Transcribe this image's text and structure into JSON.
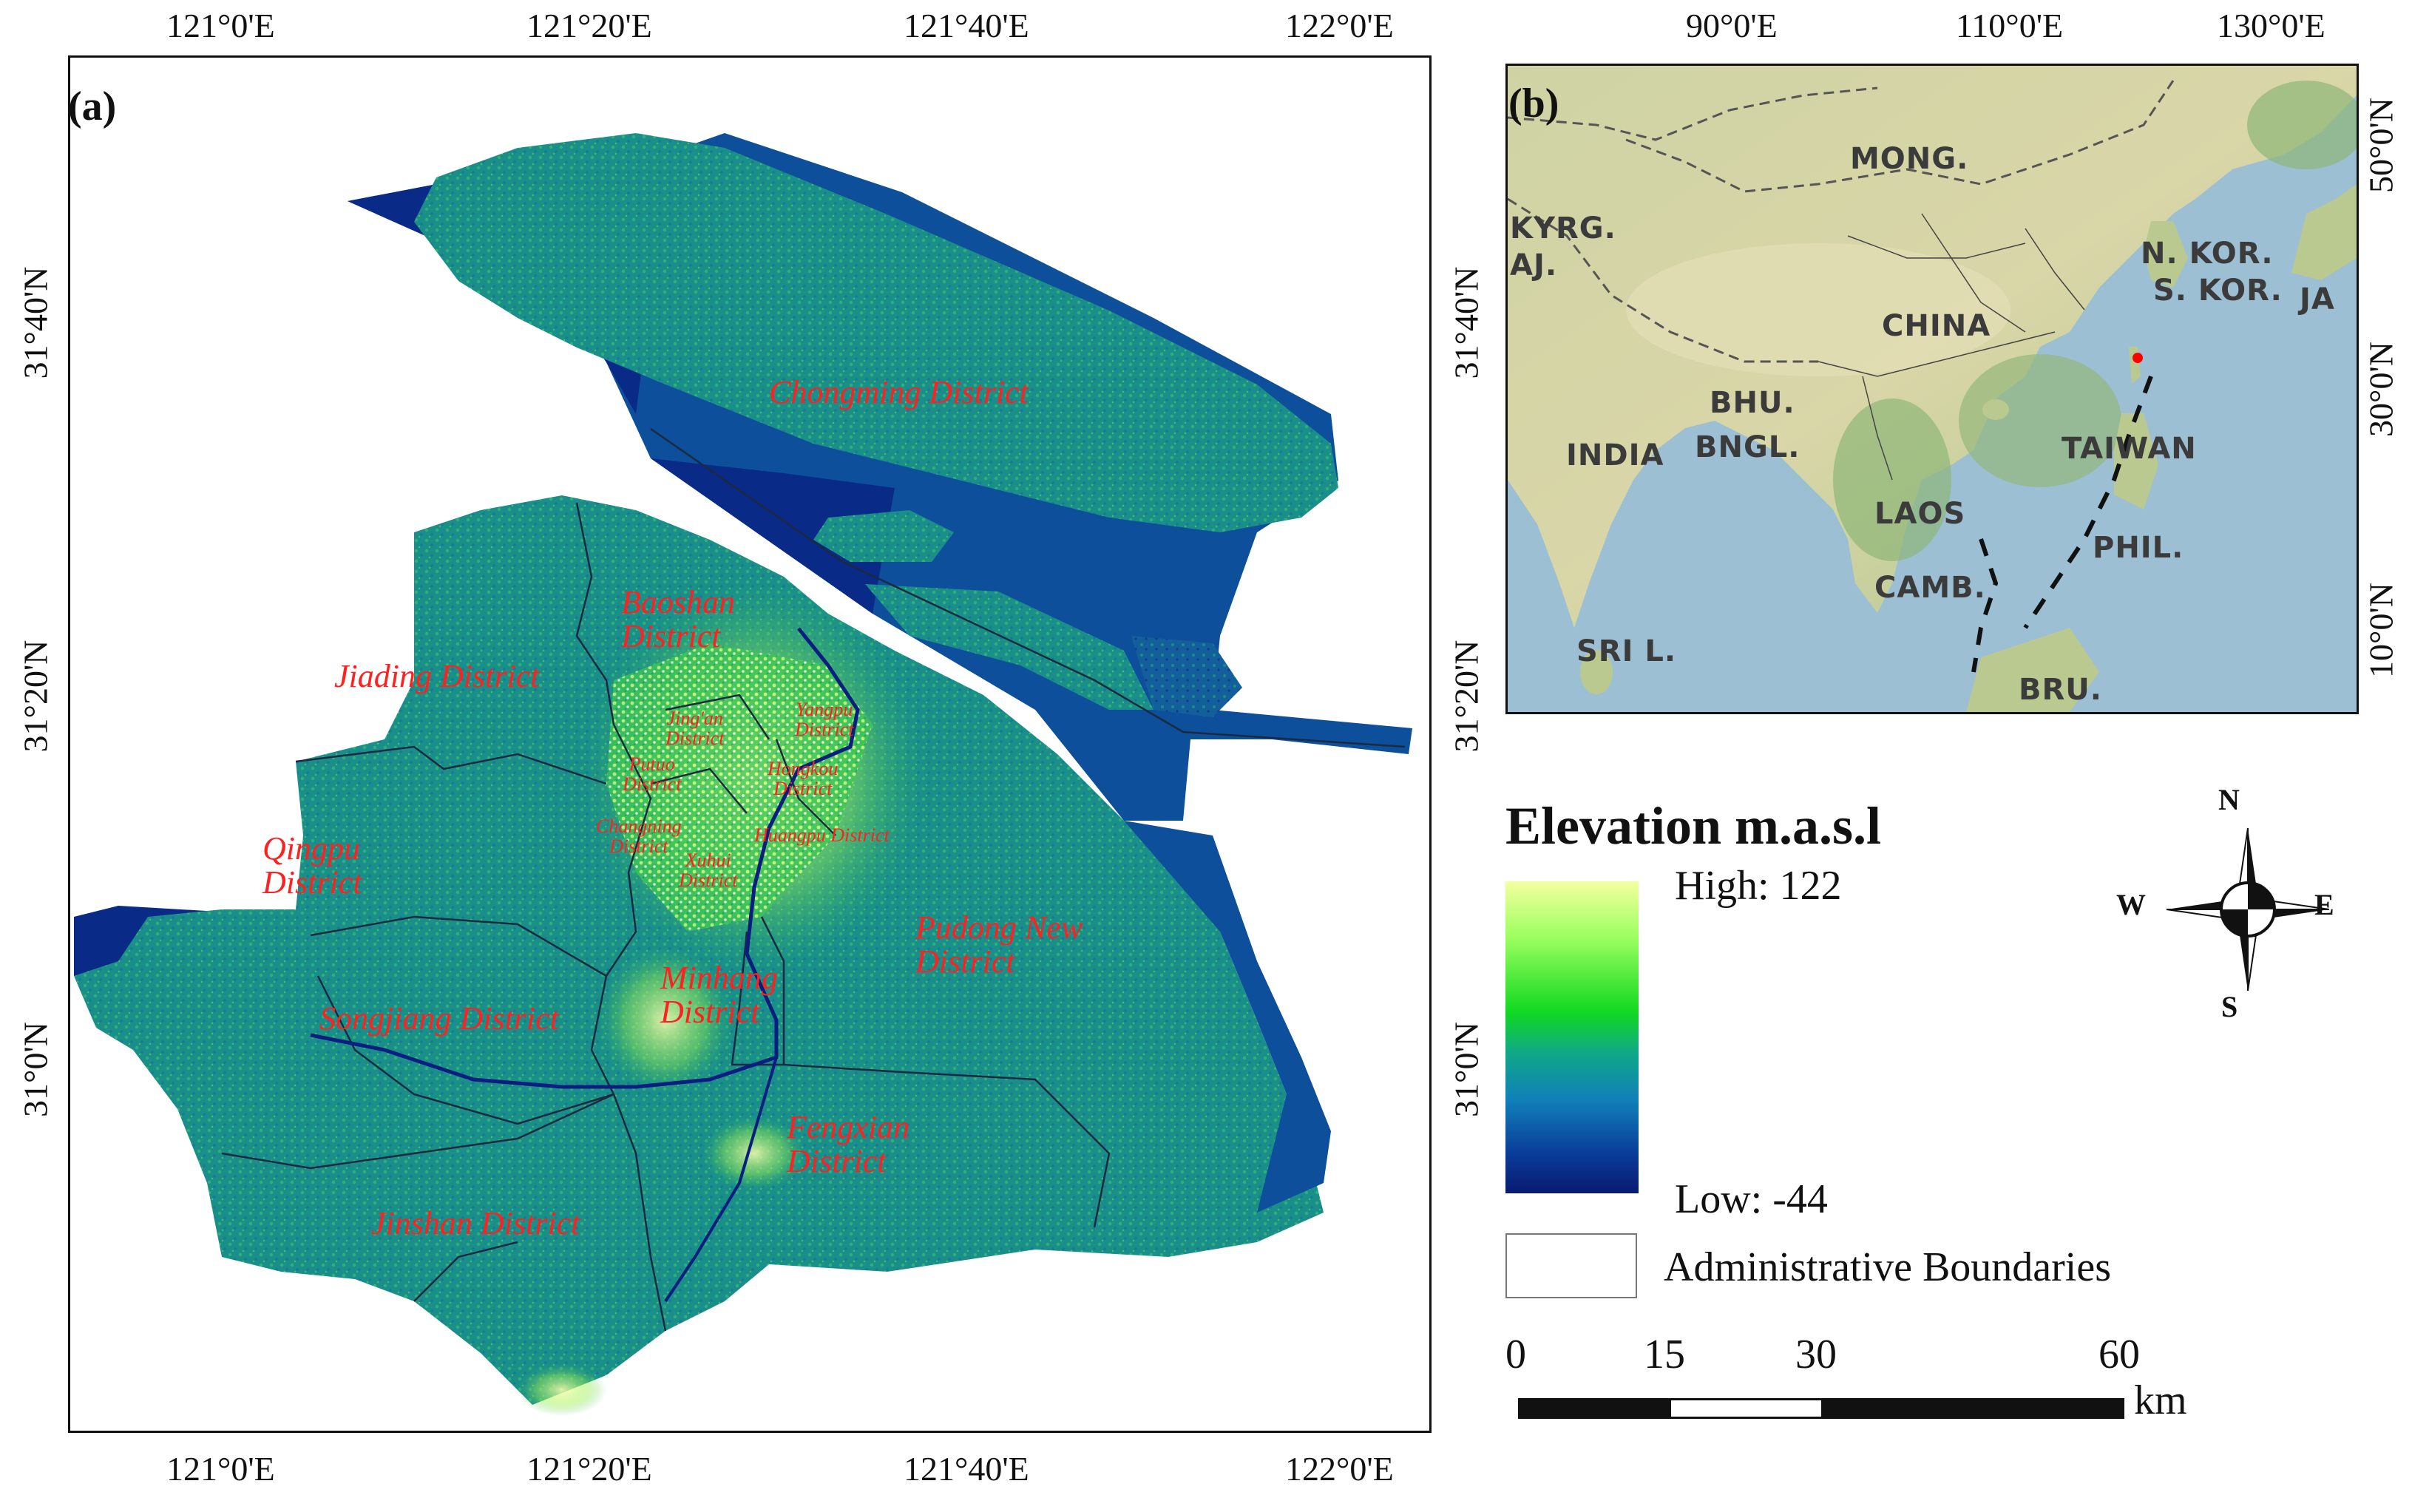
{
  "panel_a": {
    "label": "(a)",
    "top_ticks": [
      "121°0'E",
      "121°20'E",
      "121°40'E",
      "122°0'E"
    ],
    "bottom_ticks": [
      "121°0'E",
      "121°20'E",
      "121°40'E",
      "122°0'E"
    ],
    "left_ticks": [
      "31°40'N",
      "31°20'N",
      "31°0'N"
    ],
    "right_ticks": [
      "31°40'N",
      "31°20'N",
      "31°0'N"
    ],
    "districts": {
      "chongming": "Chongming District",
      "baoshan": "Baoshan\nDistrict",
      "jiading": "Jiading District",
      "jingan": "Jing'an\nDistrict",
      "yangpu": "Yangpu\nDistrict",
      "putuo": "Putuo\nDistrict",
      "hongkou": "Hongkou\nDistrict",
      "changning": "Changning\nDistrict",
      "huangpu": "Huangpu District",
      "xuhui": "Xuhui\nDistrict",
      "qingpu": "Qingpu\nDistrict",
      "pudong": "Pudong New\nDistrict",
      "minhang": "Minhang\nDistrict",
      "songjiang": "Songjiang District",
      "fengxian": "Fengxian\nDistrict",
      "jinshan": "Jinshan District"
    }
  },
  "panel_b": {
    "label": "(b)",
    "top_ticks": [
      "90°0'E",
      "110°0'E",
      "130°0'E"
    ],
    "right_ticks": [
      "50°0'N",
      "30°0'N",
      "10°0'N"
    ],
    "countries": {
      "mong": "MONG.",
      "kyrg": "KYRG.",
      "taj": "AJ.",
      "nkor": "N. KOR.",
      "skor": "S. KOR.",
      "ja": "JA",
      "china": "CHINA",
      "bhu": "BHU.",
      "india": "INDIA",
      "bngl": "BNGL.",
      "taiwan": "TAIWAN",
      "laos": "LAOS",
      "phil": "PHIL.",
      "camb": "CAMB.",
      "sril": "SRI L.",
      "bru": "BRU."
    },
    "study_area_marker_color": "#ff0000"
  },
  "legend": {
    "title": "Elevation m.a.s.l",
    "high": "High: 122",
    "low": "Low: -44",
    "boundaries": "Administrative Boundaries",
    "gradient_colors": [
      "#f4ffa0",
      "#9cff60",
      "#10d820",
      "#10a888",
      "#1080b8",
      "#0a3a98",
      "#081a70"
    ]
  },
  "compass": {
    "n": "N",
    "s": "S",
    "e": "E",
    "w": "W"
  },
  "scale_bar": {
    "labels": [
      "0",
      "15",
      "30",
      "60"
    ],
    "unit": "km"
  },
  "colors": {
    "water": "#0a2a88",
    "estuary": "#0d4f9a",
    "land": "#1a8f8a",
    "urban": "#c8f050",
    "district_label": "#ff2020",
    "ocean_b": "#9cbfd4"
  }
}
